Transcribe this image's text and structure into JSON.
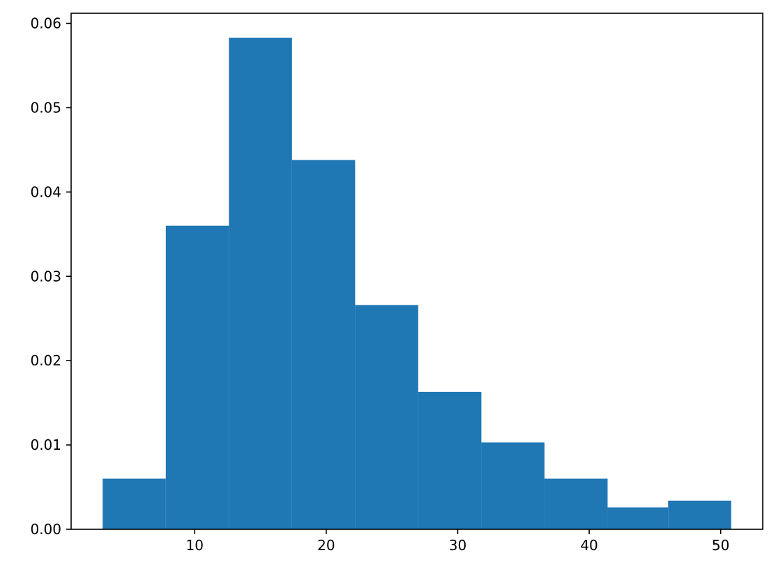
{
  "chart_data": {
    "type": "bar",
    "title": "",
    "xlabel": "",
    "ylabel": "",
    "bar_color": "#1f77b4",
    "bins": [
      {
        "x_start": 3.0,
        "x_end": 7.8,
        "value": 0.006
      },
      {
        "x_start": 7.8,
        "x_end": 12.6,
        "value": 0.036
      },
      {
        "x_start": 12.6,
        "x_end": 17.4,
        "value": 0.0583
      },
      {
        "x_start": 17.4,
        "x_end": 22.2,
        "value": 0.0438
      },
      {
        "x_start": 22.2,
        "x_end": 27.0,
        "value": 0.0266
      },
      {
        "x_start": 27.0,
        "x_end": 31.8,
        "value": 0.0163
      },
      {
        "x_start": 31.8,
        "x_end": 36.6,
        "value": 0.0103
      },
      {
        "x_start": 36.6,
        "x_end": 41.4,
        "value": 0.006
      },
      {
        "x_start": 41.4,
        "x_end": 46.0,
        "value": 0.0026
      },
      {
        "x_start": 46.0,
        "x_end": 50.8,
        "value": 0.0034
      }
    ],
    "xlim": [
      0.6,
      53.2
    ],
    "ylim": [
      0,
      0.0612
    ],
    "x_ticks": [
      10,
      20,
      30,
      40,
      50
    ],
    "x_tick_labels": [
      "10",
      "20",
      "30",
      "40",
      "50"
    ],
    "y_ticks": [
      0,
      0.01,
      0.02,
      0.03,
      0.04,
      0.05,
      0.06
    ],
    "y_tick_labels": [
      "0.00",
      "0.01",
      "0.02",
      "0.03",
      "0.04",
      "0.05",
      "0.06"
    ],
    "grid": false,
    "legend": "none"
  }
}
